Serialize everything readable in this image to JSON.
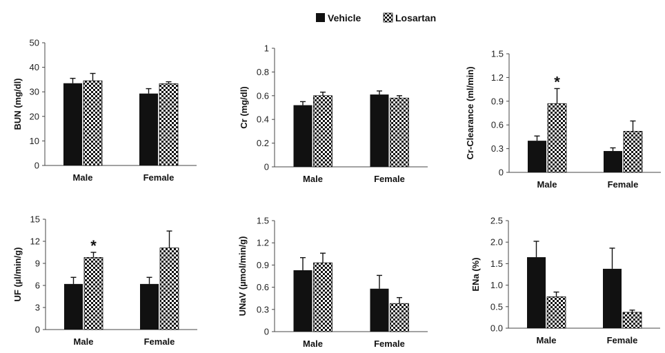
{
  "legend": [
    "Vehicle",
    "Losartan"
  ],
  "colors": {
    "vehicle": "#111111",
    "axis": "#444444"
  },
  "chart_data": [
    {
      "type": "bar",
      "ylabel": "BUN (mg/dl)",
      "categories": [
        "Male",
        "Female"
      ],
      "ylim": [
        0,
        50
      ],
      "yticks": [
        "0",
        "10",
        "20",
        "30",
        "40",
        "50"
      ],
      "series": [
        {
          "name": "Vehicle",
          "values": [
            33.5,
            29.3
          ],
          "errors": [
            2.0,
            2.0
          ]
        },
        {
          "name": "Losartan",
          "values": [
            34.5,
            33.3
          ],
          "errors": [
            3.0,
            0.8
          ]
        }
      ],
      "annotations": []
    },
    {
      "type": "bar",
      "ylabel": "Cr (mg/dl)",
      "categories": [
        "Male",
        "Female"
      ],
      "ylim": [
        0,
        1
      ],
      "yticks": [
        "0",
        "0.2",
        "0.4",
        "0.6",
        "0.8",
        "1"
      ],
      "series": [
        {
          "name": "Vehicle",
          "values": [
            0.52,
            0.61
          ],
          "errors": [
            0.03,
            0.03
          ]
        },
        {
          "name": "Losartan",
          "values": [
            0.6,
            0.58
          ],
          "errors": [
            0.03,
            0.02
          ]
        }
      ],
      "annotations": []
    },
    {
      "type": "bar",
      "ylabel": "Cr-Clearance (ml/min)",
      "categories": [
        "Male",
        "Female"
      ],
      "ylim": [
        0,
        1.5
      ],
      "yticks": [
        "0",
        "0.3",
        "0.6",
        "0.9",
        "1.2",
        "1.5"
      ],
      "series": [
        {
          "name": "Vehicle",
          "values": [
            0.4,
            0.27
          ],
          "errors": [
            0.06,
            0.04
          ]
        },
        {
          "name": "Losartan",
          "values": [
            0.87,
            0.52
          ],
          "errors": [
            0.19,
            0.13
          ]
        }
      ],
      "annotations": [
        {
          "series": 1,
          "category": 0,
          "text": "*"
        }
      ]
    },
    {
      "type": "bar",
      "ylabel": "UF (µl/min/g)",
      "categories": [
        "Male",
        "Female"
      ],
      "ylim": [
        0,
        15
      ],
      "yticks": [
        "0",
        "3",
        "6",
        "9",
        "12",
        "15"
      ],
      "series": [
        {
          "name": "Vehicle",
          "values": [
            6.2,
            6.2
          ],
          "errors": [
            0.9,
            0.9
          ]
        },
        {
          "name": "Losartan",
          "values": [
            9.8,
            11.1
          ],
          "errors": [
            0.7,
            2.3
          ]
        }
      ],
      "annotations": [
        {
          "series": 1,
          "category": 0,
          "text": "*"
        }
      ]
    },
    {
      "type": "bar",
      "ylabel": "UNaV (µmol/min/g)",
      "categories": [
        "Male",
        "Female"
      ],
      "ylim": [
        0,
        1.5
      ],
      "yticks": [
        "0",
        "0.3",
        "0.6",
        "0.9",
        "1.2",
        "1.5"
      ],
      "series": [
        {
          "name": "Vehicle",
          "values": [
            0.83,
            0.58
          ],
          "errors": [
            0.17,
            0.18
          ]
        },
        {
          "name": "Losartan",
          "values": [
            0.93,
            0.38
          ],
          "errors": [
            0.13,
            0.08
          ]
        }
      ],
      "annotations": []
    },
    {
      "type": "bar",
      "ylabel": "ENa (%)",
      "categories": [
        "Male",
        "Female"
      ],
      "ylim": [
        0,
        2.5
      ],
      "yticks": [
        "0.0",
        "0.5",
        "1.0",
        "1.5",
        "2.0",
        "2.5"
      ],
      "series": [
        {
          "name": "Vehicle",
          "values": [
            1.65,
            1.38
          ],
          "errors": [
            0.37,
            0.48
          ]
        },
        {
          "name": "Losartan",
          "values": [
            0.73,
            0.37
          ],
          "errors": [
            0.11,
            0.05
          ]
        }
      ],
      "annotations": []
    }
  ]
}
